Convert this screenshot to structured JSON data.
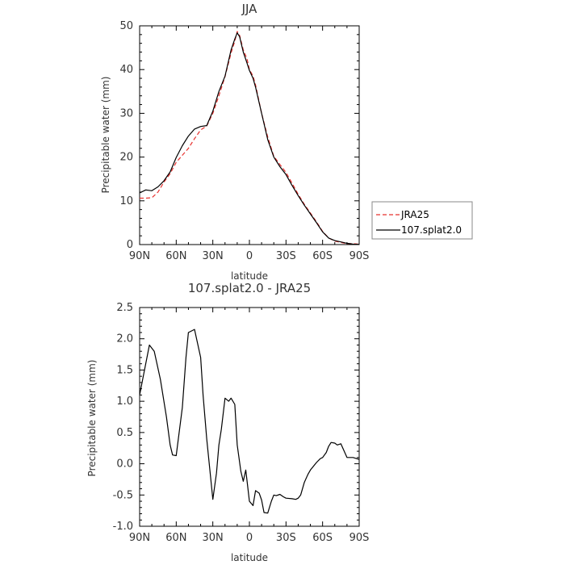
{
  "chart_data": [
    {
      "type": "line",
      "title": "JJA",
      "xlabel": "latitude",
      "ylabel": "Precipitable water (mm)",
      "x_tick_labels": [
        "90N",
        "60N",
        "30N",
        "0",
        "30S",
        "60S",
        "90S"
      ],
      "x_ticks": [
        90,
        60,
        30,
        0,
        -30,
        -60,
        -90
      ],
      "xlim": [
        90,
        -90
      ],
      "ylim": [
        0,
        50
      ],
      "y_ticks": [
        0,
        10,
        20,
        30,
        40,
        50
      ],
      "legend_position": "right",
      "series": [
        {
          "name": "JRA25",
          "color": "#e8322f",
          "dash": "dashed",
          "x": [
            90,
            85,
            80,
            75,
            70,
            65,
            60,
            55,
            50,
            45,
            40,
            35,
            30,
            25,
            20,
            15,
            12,
            10,
            8,
            5,
            2,
            0,
            -3,
            -5,
            -10,
            -15,
            -20,
            -25,
            -30,
            -35,
            -40,
            -45,
            -50,
            -55,
            -60,
            -65,
            -70,
            -75,
            -80,
            -85,
            -90
          ],
          "y": [
            10.6,
            10.6,
            10.7,
            12.0,
            14.3,
            16.2,
            18.8,
            20.4,
            22.0,
            24.2,
            26.2,
            27.1,
            30.0,
            34.0,
            38.4,
            43.8,
            46.5,
            48.7,
            47.8,
            44.5,
            42.5,
            40.0,
            38.5,
            36.5,
            30.0,
            24.6,
            20.2,
            18.3,
            16.5,
            14.0,
            11.5,
            9.2,
            7.2,
            5.2,
            3.0,
            1.5,
            0.8,
            0.5,
            0.2,
            0.2,
            0.1
          ]
        },
        {
          "name": "107.splat2.0",
          "color": "#000000",
          "dash": "solid",
          "x": [
            90,
            85,
            80,
            75,
            70,
            65,
            60,
            55,
            50,
            45,
            40,
            35,
            30,
            25,
            20,
            15,
            12,
            10,
            8,
            5,
            2,
            0,
            -3,
            -5,
            -10,
            -15,
            -20,
            -25,
            -30,
            -35,
            -40,
            -45,
            -50,
            -55,
            -60,
            -65,
            -70,
            -75,
            -80,
            -85,
            -90
          ],
          "y": [
            11.8,
            12.5,
            12.3,
            13.2,
            14.6,
            16.6,
            19.9,
            22.6,
            24.8,
            26.4,
            27.0,
            27.2,
            30.5,
            35.0,
            38.5,
            44.5,
            47.0,
            48.4,
            47.5,
            44.0,
            41.5,
            39.8,
            38.0,
            36.0,
            30.0,
            24.0,
            20.0,
            17.8,
            16.0,
            13.5,
            11.2,
            9.0,
            7.0,
            5.0,
            2.9,
            1.5,
            0.9,
            0.6,
            0.3,
            0.1,
            0.05
          ]
        }
      ]
    },
    {
      "type": "line",
      "title": "107.splat2.0 - JRA25",
      "xlabel": "latitude",
      "ylabel": "Precipitable water (mm)",
      "x_tick_labels": [
        "90N",
        "60N",
        "30N",
        "0",
        "30S",
        "60S",
        "90S"
      ],
      "x_ticks": [
        90,
        60,
        30,
        0,
        -30,
        -60,
        -90
      ],
      "xlim": [
        90,
        -90
      ],
      "ylim": [
        -1.0,
        2.5
      ],
      "y_ticks": [
        -1.0,
        -0.5,
        0.0,
        0.5,
        1.0,
        1.5,
        2.0,
        2.5
      ],
      "y_tick_labels": [
        "-1.0",
        "-0.5",
        "0.0",
        "0.5",
        "1.0",
        "1.5",
        "2.0",
        "2.5"
      ],
      "series": [
        {
          "color": "#000000",
          "dash": "solid",
          "x": [
            90,
            87,
            82,
            78,
            73,
            68,
            65,
            63,
            60,
            55,
            52,
            50,
            45,
            40,
            38,
            35,
            30,
            27,
            25,
            23,
            20,
            17,
            15,
            12,
            10,
            7,
            5,
            3,
            0,
            -3,
            -5,
            -8,
            -10,
            -12,
            -15,
            -18,
            -20,
            -22,
            -25,
            -28,
            -30,
            -35,
            -38,
            -40,
            -42,
            -45,
            -48,
            -50,
            -55,
            -58,
            -60,
            -63,
            -65,
            -67,
            -70,
            -72,
            -75,
            -80,
            -85,
            -90
          ],
          "y": [
            1.1,
            1.4,
            1.9,
            1.8,
            1.35,
            0.75,
            0.3,
            0.14,
            0.13,
            0.9,
            1.7,
            2.1,
            2.15,
            1.7,
            1.1,
            0.4,
            -0.57,
            -0.15,
            0.3,
            0.55,
            1.05,
            1.0,
            1.05,
            0.95,
            0.3,
            -0.12,
            -0.28,
            -0.1,
            -0.6,
            -0.67,
            -0.43,
            -0.47,
            -0.58,
            -0.78,
            -0.79,
            -0.6,
            -0.5,
            -0.51,
            -0.49,
            -0.53,
            -0.55,
            -0.56,
            -0.57,
            -0.55,
            -0.5,
            -0.3,
            -0.17,
            -0.1,
            0.02,
            0.08,
            0.1,
            0.18,
            0.28,
            0.34,
            0.33,
            0.3,
            0.32,
            0.1,
            0.1,
            0.07
          ]
        }
      ]
    }
  ]
}
